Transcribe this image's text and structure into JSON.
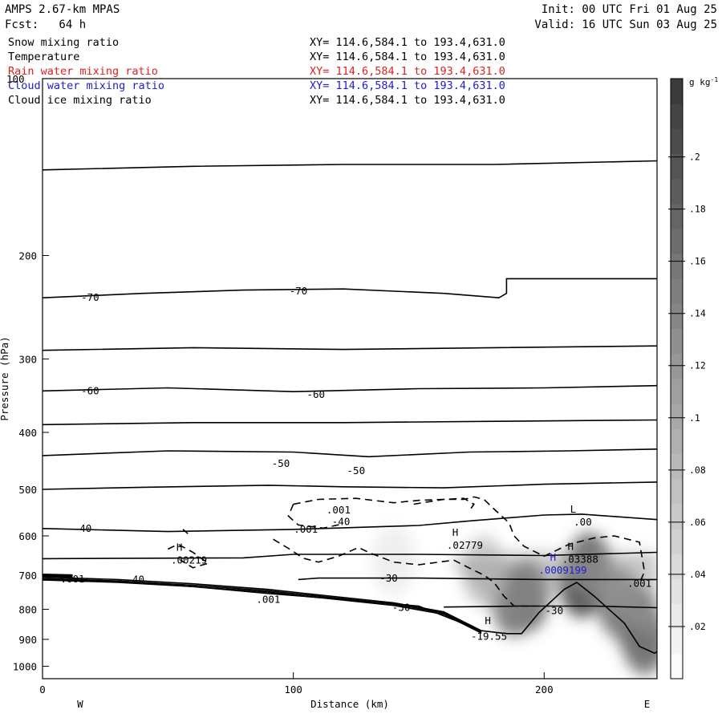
{
  "header": {
    "model": "AMPS 2.67-km MPAS",
    "fcst": "Fcst:   64 h",
    "init": "Init: 00 UTC Fri 01 Aug 25",
    "valid": "Valid: 16 UTC Sun 03 Aug 25"
  },
  "fields": [
    {
      "name": "Snow mixing ratio",
      "xy": "XY= 114.6,584.1 to 193.4,631.0",
      "color": "#000000"
    },
    {
      "name": "Temperature",
      "xy": "XY= 114.6,584.1 to 193.4,631.0",
      "color": "#000000"
    },
    {
      "name": "Rain water mixing ratio",
      "xy": "XY= 114.6,584.1 to 193.4,631.0",
      "color": "#e02020"
    },
    {
      "name": "Cloud water mixing ratio",
      "xy": "XY= 114.6,584.1 to 193.4,631.0",
      "color": "#2020d0"
    },
    {
      "name": "Cloud ice mixing ratio",
      "xy": "XY= 114.6,584.1 to 193.4,631.0",
      "color": "#000000"
    }
  ],
  "chart_data": {
    "type": "heatmap",
    "xlabel": "Distance (km)",
    "ylabel": "Pressure (hPa)",
    "xlim": [
      0,
      245
    ],
    "ylim": [
      100,
      1050
    ],
    "x_ticks": [
      0,
      100,
      200
    ],
    "y_ticks": [
      200,
      300,
      400,
      500,
      600,
      700,
      800,
      900,
      1000
    ],
    "y_top_label": "100",
    "y_scale": "log",
    "endpoints": {
      "left": "W",
      "right": "E"
    },
    "colorbar": {
      "unit": "g kg",
      "unit_sup": "-1",
      "ticks": [
        ".02",
        ".04",
        ".06",
        ".08",
        ".1",
        ".12",
        ".14",
        ".16",
        ".18",
        ".2"
      ],
      "min": 0,
      "max": 0.23
    },
    "temperature_contour_labels": [
      {
        "text": "-70",
        "x": 19,
        "p": 236
      },
      {
        "text": "-70",
        "x": 102,
        "p": 230
      },
      {
        "text": "-60",
        "x": 19,
        "p": 340
      },
      {
        "text": "-60",
        "x": 109,
        "p": 345
      },
      {
        "text": "-50",
        "x": 95,
        "p": 452
      },
      {
        "text": "-50",
        "x": 125,
        "p": 465
      },
      {
        "text": "-40",
        "x": 16,
        "p": 583
      },
      {
        "text": "-40",
        "x": 119,
        "p": 568
      },
      {
        "text": "-40",
        "x": 37,
        "p": 712
      },
      {
        "text": "-30",
        "x": 138,
        "p": 709
      },
      {
        "text": "-30",
        "x": 143,
        "p": 795
      },
      {
        "text": "-30",
        "x": 204,
        "p": 805
      },
      {
        "text": "-19.55",
        "x": 178,
        "p": 890
      }
    ],
    "snow_contour_labels": [
      {
        "text": ".001",
        "x": 118,
        "p": 543
      },
      {
        "text": ".001",
        "x": 105,
        "p": 585
      },
      {
        "text": ".001",
        "x": 90,
        "p": 770
      },
      {
        "text": ".001",
        "x": 238,
        "p": 723
      },
      {
        "text": ".001",
        "x": 12,
        "p": 711
      }
    ],
    "extrema": [
      {
        "mark": "H",
        "value": ".02779",
        "x": 162,
        "p": 615,
        "color": "#000000"
      },
      {
        "mark": "H",
        "value": ".03388",
        "x": 208,
        "p": 650,
        "color": "#000000"
      },
      {
        "mark": "H",
        "value": ".0009199",
        "x": 201,
        "p": 678,
        "color": "#2020d0"
      },
      {
        "mark": "H",
        "value": ".00219",
        "x": 52,
        "p": 652,
        "color": "#000000"
      },
      {
        "mark": "L",
        "value": ".00",
        "x": 209,
        "p": 562,
        "color": "#000000"
      },
      {
        "mark": "H",
        "value": "",
        "x": 175,
        "p": 870,
        "color": "#000000"
      }
    ],
    "snow_shading_blobs": [
      {
        "x": 188,
        "p": 775,
        "value": 0.17
      },
      {
        "x": 193,
        "p": 760,
        "value": 0.18
      },
      {
        "x": 215,
        "p": 720,
        "value": 0.2
      },
      {
        "x": 218,
        "p": 680,
        "value": 0.17
      },
      {
        "x": 237,
        "p": 840,
        "value": 0.19
      },
      {
        "x": 240,
        "p": 900,
        "value": 0.16
      },
      {
        "x": 230,
        "p": 780,
        "value": 0.15
      },
      {
        "x": 176,
        "p": 690,
        "value": 0.06
      },
      {
        "x": 140,
        "p": 660,
        "value": 0.02
      }
    ]
  }
}
